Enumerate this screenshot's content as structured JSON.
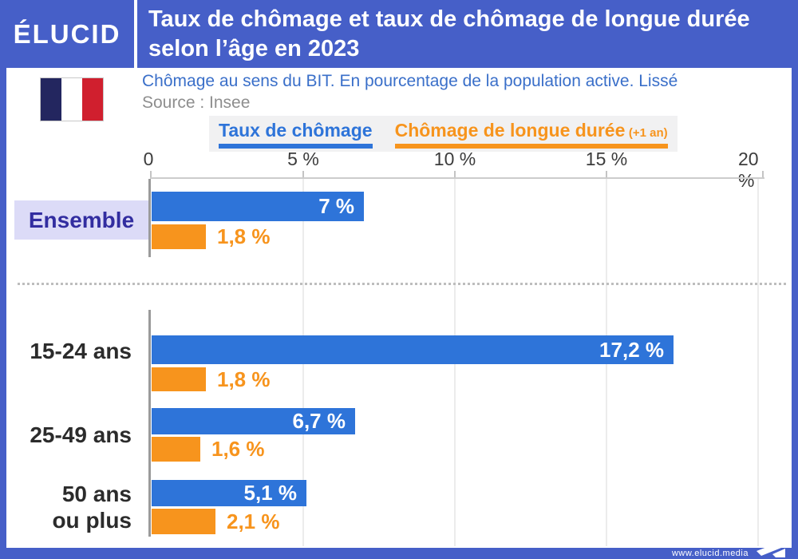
{
  "header": {
    "brand": "ÉLUCID",
    "title": "Taux de chômage et taux de chômage de longue durée selon l’âge en 2023"
  },
  "meta": {
    "subtitle": "Chômage au sens du BIT. En pourcentage de la population active. Lissé",
    "source": "Source : Insee"
  },
  "legend": {
    "item_blue": "Taux de chômage",
    "item_orange": "Chômage de longue durée",
    "item_orange_suffix": "(+1 an)"
  },
  "footer": {
    "url": "www.elucid.media"
  },
  "colors": {
    "brand_blue": "#465fc8",
    "bar_blue": "#2e74d9",
    "bar_orange": "#f7941d",
    "subtitle_blue": "#3a6fc9",
    "ensemble_text": "#322da0",
    "ensemble_bg": "#dcdbf7",
    "flag_navy": "#23265f",
    "flag_red": "#d01f2e"
  },
  "chart_data": {
    "type": "bar",
    "orientation": "horizontal",
    "title": "Taux de chômage et taux de chômage de longue durée selon l’âge en 2023",
    "subtitle": "Chômage au sens du BIT. En pourcentage de la population active. Lissé",
    "source": "Source : Insee",
    "categories": [
      "Ensemble",
      "15-24 ans",
      "25-49 ans",
      "50 ans\nou plus"
    ],
    "xlim": [
      0,
      20
    ],
    "x_ticks": [
      "0",
      "5 %",
      "10 %",
      "15 %",
      "20 %"
    ],
    "grid": true,
    "legend_position": "top",
    "series": [
      {
        "name": "Taux de chômage",
        "color": "#2e74d9",
        "values": [
          7,
          17.2,
          6.7,
          5.1
        ],
        "value_labels": [
          "7 %",
          "17,2 %",
          "6,7 %",
          "5,1 %"
        ]
      },
      {
        "name": "Chômage de longue durée (+1 an)",
        "color": "#f7941d",
        "values": [
          1.8,
          1.8,
          1.6,
          2.1
        ],
        "value_labels": [
          "1,8 %",
          "1,8 %",
          "1,6 %",
          "2,1 %"
        ]
      }
    ]
  }
}
